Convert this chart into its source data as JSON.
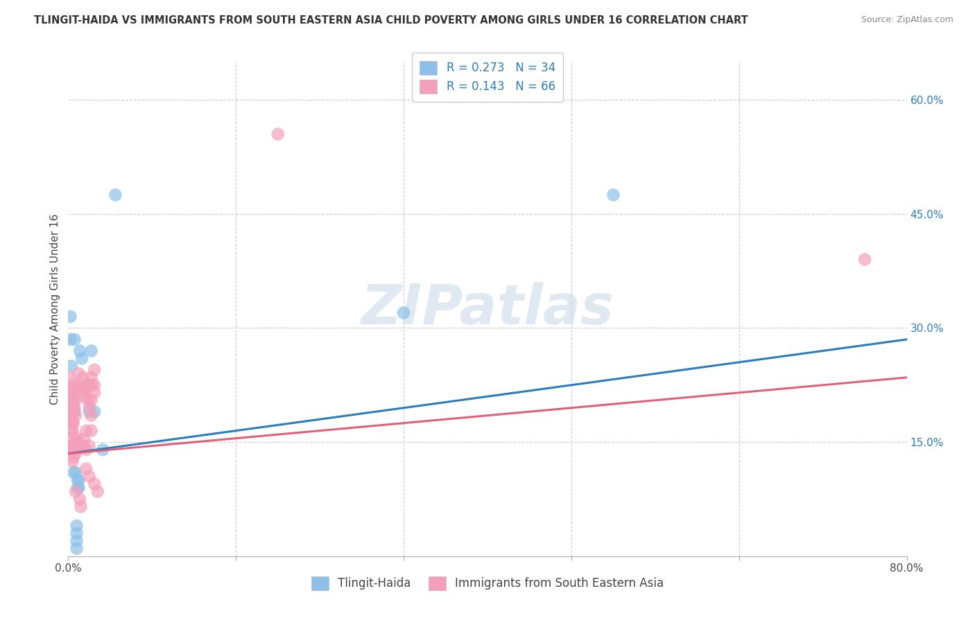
{
  "title": "TLINGIT-HAIDA VS IMMIGRANTS FROM SOUTH EASTERN ASIA CHILD POVERTY AMONG GIRLS UNDER 16 CORRELATION CHART",
  "source": "Source: ZipAtlas.com",
  "xlabel": "",
  "ylabel": "Child Poverty Among Girls Under 16",
  "legend_bottom": [
    "Tlingit-Haida",
    "Immigrants from South Eastern Asia"
  ],
  "R_blue": 0.273,
  "N_blue": 34,
  "R_pink": 0.143,
  "N_pink": 66,
  "xlim": [
    0.0,
    0.8
  ],
  "ylim": [
    0.0,
    0.65
  ],
  "xtick_positions": [
    0.0,
    0.16,
    0.32,
    0.48,
    0.64,
    0.8
  ],
  "xticklabels": [
    "0.0%",
    "",
    "",
    "",
    "",
    "80.0%"
  ],
  "yticks_right": [
    0.15,
    0.3,
    0.45,
    0.6
  ],
  "ytick_labels_right": [
    "15.0%",
    "30.0%",
    "45.0%",
    "60.0%"
  ],
  "blue_color": "#8DBFE8",
  "pink_color": "#F4A0BA",
  "blue_line_color": "#2B7CBB",
  "pink_line_color": "#E0607A",
  "watermark": "ZIPatlas",
  "blue_line": {
    "x0": 0.0,
    "y0": 0.135,
    "x1": 0.8,
    "y1": 0.285
  },
  "pink_line": {
    "x0": 0.0,
    "y0": 0.135,
    "x1": 0.8,
    "y1": 0.235
  },
  "blue_scatter": [
    [
      0.001,
      0.14
    ],
    [
      0.002,
      0.285
    ],
    [
      0.002,
      0.315
    ],
    [
      0.003,
      0.195
    ],
    [
      0.003,
      0.25
    ],
    [
      0.003,
      0.14
    ],
    [
      0.004,
      0.205
    ],
    [
      0.004,
      0.195
    ],
    [
      0.004,
      0.19
    ],
    [
      0.005,
      0.2
    ],
    [
      0.005,
      0.19
    ],
    [
      0.005,
      0.11
    ],
    [
      0.006,
      0.285
    ],
    [
      0.006,
      0.19
    ],
    [
      0.007,
      0.14
    ],
    [
      0.007,
      0.11
    ],
    [
      0.008,
      0.04
    ],
    [
      0.008,
      0.03
    ],
    [
      0.008,
      0.02
    ],
    [
      0.008,
      0.01
    ],
    [
      0.009,
      0.15
    ],
    [
      0.009,
      0.1
    ],
    [
      0.009,
      0.09
    ],
    [
      0.01,
      0.1
    ],
    [
      0.01,
      0.09
    ],
    [
      0.011,
      0.27
    ],
    [
      0.013,
      0.26
    ],
    [
      0.02,
      0.19
    ],
    [
      0.022,
      0.27
    ],
    [
      0.025,
      0.19
    ],
    [
      0.033,
      0.14
    ],
    [
      0.045,
      0.475
    ],
    [
      0.32,
      0.32
    ],
    [
      0.52,
      0.475
    ]
  ],
  "pink_scatter": [
    [
      0.001,
      0.235
    ],
    [
      0.002,
      0.21
    ],
    [
      0.002,
      0.195
    ],
    [
      0.002,
      0.185
    ],
    [
      0.003,
      0.215
    ],
    [
      0.003,
      0.195
    ],
    [
      0.003,
      0.185
    ],
    [
      0.003,
      0.175
    ],
    [
      0.003,
      0.165
    ],
    [
      0.003,
      0.155
    ],
    [
      0.003,
      0.145
    ],
    [
      0.004,
      0.22
    ],
    [
      0.004,
      0.2
    ],
    [
      0.004,
      0.19
    ],
    [
      0.004,
      0.175
    ],
    [
      0.004,
      0.165
    ],
    [
      0.004,
      0.14
    ],
    [
      0.004,
      0.125
    ],
    [
      0.005,
      0.225
    ],
    [
      0.005,
      0.175
    ],
    [
      0.005,
      0.145
    ],
    [
      0.005,
      0.13
    ],
    [
      0.005,
      0.21
    ],
    [
      0.006,
      0.195
    ],
    [
      0.006,
      0.14
    ],
    [
      0.007,
      0.205
    ],
    [
      0.007,
      0.185
    ],
    [
      0.007,
      0.135
    ],
    [
      0.007,
      0.085
    ],
    [
      0.008,
      0.155
    ],
    [
      0.009,
      0.145
    ],
    [
      0.009,
      0.15
    ],
    [
      0.01,
      0.24
    ],
    [
      0.01,
      0.225
    ],
    [
      0.01,
      0.22
    ],
    [
      0.011,
      0.145
    ],
    [
      0.011,
      0.075
    ],
    [
      0.012,
      0.065
    ],
    [
      0.013,
      0.145
    ],
    [
      0.014,
      0.235
    ],
    [
      0.015,
      0.155
    ],
    [
      0.015,
      0.145
    ],
    [
      0.016,
      0.22
    ],
    [
      0.016,
      0.215
    ],
    [
      0.016,
      0.21
    ],
    [
      0.017,
      0.165
    ],
    [
      0.017,
      0.14
    ],
    [
      0.017,
      0.115
    ],
    [
      0.018,
      0.225
    ],
    [
      0.019,
      0.225
    ],
    [
      0.019,
      0.205
    ],
    [
      0.02,
      0.195
    ],
    [
      0.02,
      0.145
    ],
    [
      0.02,
      0.105
    ],
    [
      0.022,
      0.235
    ],
    [
      0.022,
      0.225
    ],
    [
      0.022,
      0.205
    ],
    [
      0.022,
      0.185
    ],
    [
      0.022,
      0.165
    ],
    [
      0.025,
      0.245
    ],
    [
      0.025,
      0.225
    ],
    [
      0.025,
      0.215
    ],
    [
      0.025,
      0.095
    ],
    [
      0.028,
      0.085
    ],
    [
      0.2,
      0.555
    ],
    [
      0.76,
      0.39
    ]
  ]
}
